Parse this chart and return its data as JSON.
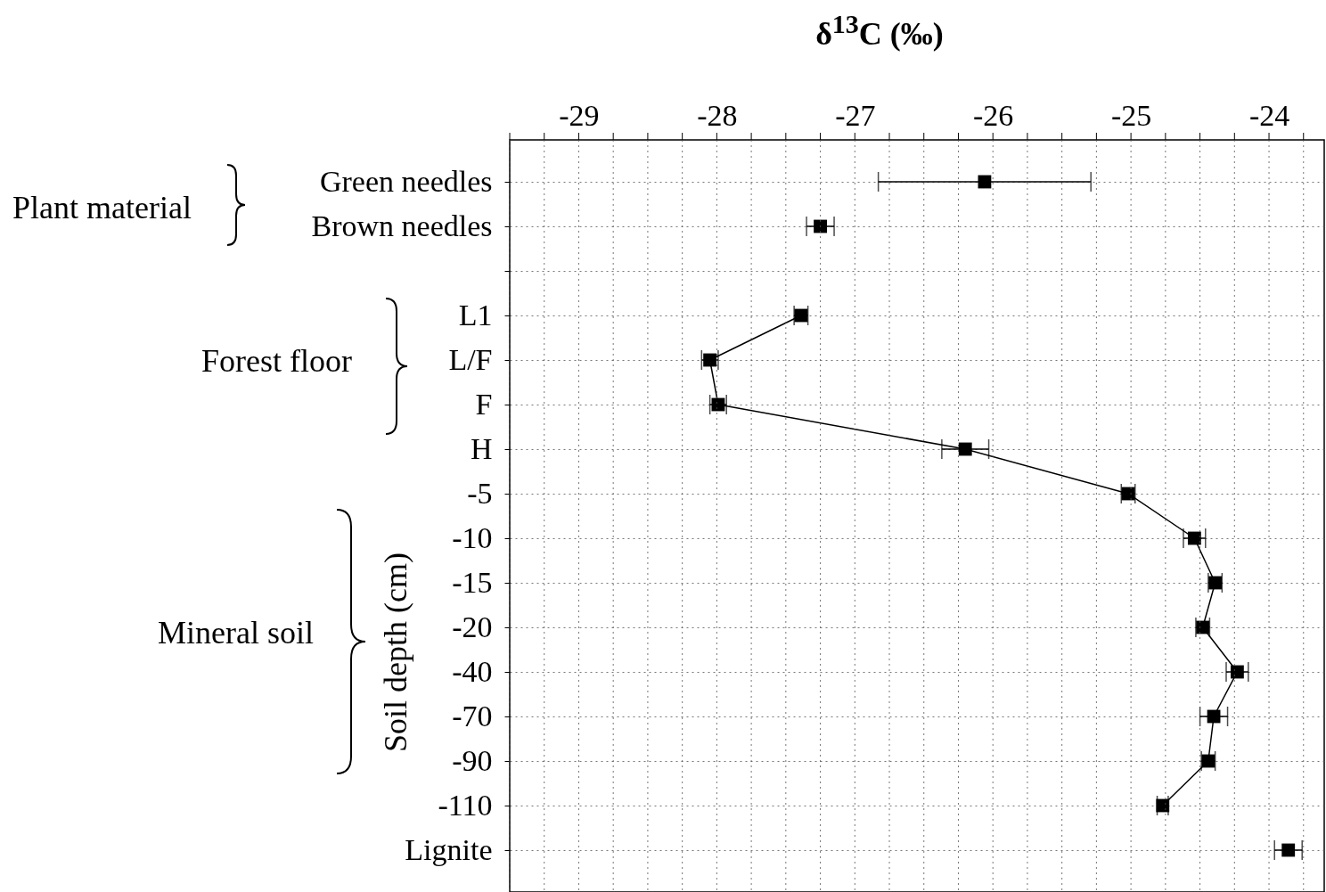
{
  "chart_data": {
    "type": "line",
    "orientation": "horizontal",
    "xlabel": "δ$^{13}$C (‰)",
    "categories": [
      "Green needles",
      "Brown needles",
      null,
      "L1",
      "L/F",
      "F",
      "H",
      "-5",
      "-10",
      "-15",
      "-20",
      "-40",
      "-70",
      "-90",
      "-110",
      "Lignite"
    ],
    "series": [
      {
        "type": "scatter",
        "color": "#000000",
        "values": [
          -26.06,
          -27.25,
          null,
          null,
          null,
          null,
          null,
          null,
          null,
          null,
          null,
          null,
          null,
          null,
          null,
          -23.86
        ],
        "errors": [
          0.77,
          0.1,
          null,
          null,
          null,
          null,
          null,
          null,
          null,
          null,
          null,
          null,
          null,
          null,
          null,
          0.1
        ]
      },
      {
        "type": "line",
        "color": "#000000",
        "values": [
          null,
          null,
          null,
          -27.39,
          -28.05,
          -27.99,
          -26.2,
          -25.02,
          -24.54,
          -24.39,
          -24.48,
          -24.23,
          -24.4,
          -24.44,
          -24.77,
          null
        ],
        "errors": [
          null,
          null,
          null,
          0.05,
          0.06,
          0.06,
          0.17,
          0.05,
          0.08,
          0.05,
          0.05,
          0.08,
          0.1,
          0.05,
          0.04,
          null
        ]
      }
    ],
    "xlim": [
      -29.5,
      -23.6
    ],
    "xticks": [
      {
        "value": -29.5,
        "label": null
      },
      {
        "value": -29.25,
        "label": null
      },
      -29,
      {
        "value": -28.75,
        "label": null
      },
      {
        "value": -28.5,
        "label": null
      },
      {
        "value": -28.25,
        "label": null
      },
      -28,
      {
        "value": -27.75,
        "label": null
      },
      {
        "value": -27.5,
        "label": null
      },
      {
        "value": -27.25,
        "label": null
      },
      -27,
      {
        "value": -26.75,
        "label": null
      },
      {
        "value": -26.5,
        "label": null
      },
      {
        "value": -26.25,
        "label": null
      },
      -26,
      {
        "value": -25.75,
        "label": null
      },
      {
        "value": -25.5,
        "label": null
      },
      {
        "value": -25.25,
        "label": null
      },
      -25,
      {
        "value": -24.75,
        "label": null
      },
      {
        "value": -24.5,
        "label": null
      },
      {
        "value": -24.25,
        "label": null
      },
      -24,
      {
        "value": -23.75,
        "label": null
      }
    ],
    "grid": true,
    "marker": "square",
    "line_style": "solid",
    "annotations": [
      "Plant material",
      "Forest floor",
      "Mineral soil",
      "Soil depth (cm)"
    ]
  }
}
